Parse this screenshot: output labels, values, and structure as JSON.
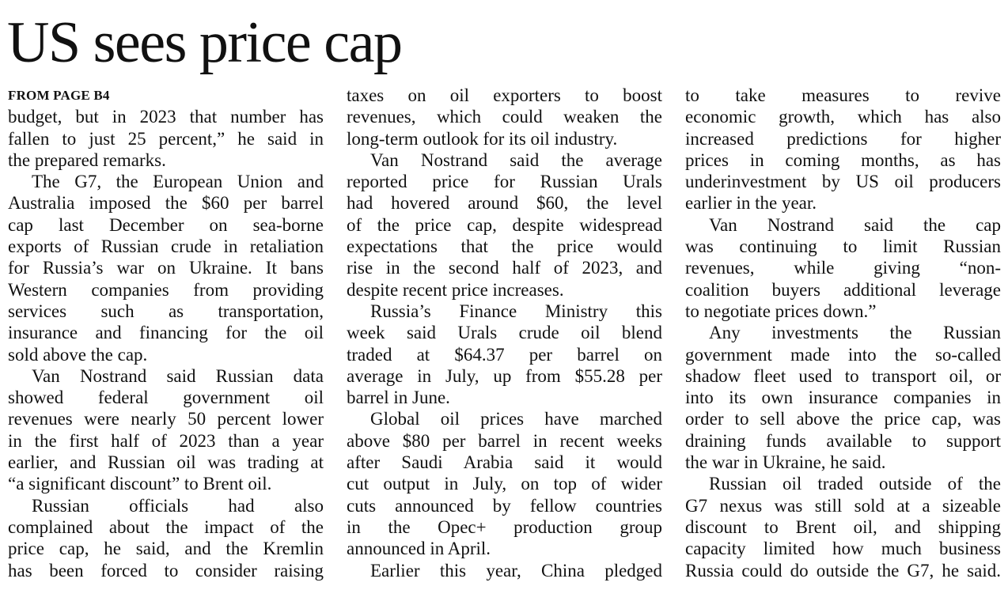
{
  "headline": "US sees price cap",
  "kicker": "FROM PAGE B4",
  "columns": [
    [
      {
        "indent": false,
        "continues": false,
        "lines": [
          "budget, but in 2023 that number has",
          "fallen to just 25 percent,” he said in",
          "the prepared remarks."
        ]
      },
      {
        "indent": true,
        "continues": false,
        "lines": [
          "The G7, the European Union and",
          "Australia imposed the $60 per barrel",
          "cap last December on sea-borne",
          "exports of Russian crude in retaliation",
          "for Russia’s war on Ukraine. It bans",
          "Western companies from providing",
          "services such as transportation,",
          "insurance and financing for the oil",
          "sold above the cap."
        ]
      },
      {
        "indent": true,
        "continues": false,
        "lines": [
          "Van Nostrand said Russian data",
          "showed federal government oil",
          "revenues were nearly 50 percent lower",
          "in the first half of 2023 than a year",
          "earlier, and Russian oil was trading at",
          "“a significant discount” to Brent oil."
        ]
      },
      {
        "indent": true,
        "continues": true,
        "lines": [
          "Russian officials had also",
          "complained about the impact of the",
          "price cap, he said, and the Kremlin",
          "has been forced to consider raising"
        ]
      }
    ],
    [
      {
        "indent": false,
        "continues": false,
        "lines": [
          "taxes on oil exporters to boost",
          "revenues, which could weaken the",
          "long-term outlook for its oil industry."
        ]
      },
      {
        "indent": true,
        "continues": false,
        "lines": [
          "Van Nostrand said the average",
          "reported price for Russian Urals",
          "had hovered around $60, the level",
          "of the price cap, despite widespread",
          "expectations that the price would",
          "rise in the second half of 2023, and",
          "despite recent price increases."
        ]
      },
      {
        "indent": true,
        "continues": false,
        "lines": [
          "Russia’s Finance Ministry this",
          "week said Urals crude oil blend",
          "traded at $64.37 per barrel on",
          "average in July, up from $55.28 per",
          "barrel in June."
        ]
      },
      {
        "indent": true,
        "continues": false,
        "lines": [
          "Global oil prices have marched",
          "above $80 per barrel in recent weeks",
          "after Saudi Arabia said it would",
          "cut output in July, on top of wider",
          "cuts announced by fellow countries",
          "in the Opec+ production group",
          "announced in April."
        ]
      },
      {
        "indent": true,
        "continues": true,
        "lines": [
          "Earlier this year, China pledged"
        ]
      }
    ],
    [
      {
        "indent": false,
        "continues": false,
        "lines": [
          "to take measures to revive",
          "economic growth, which has also",
          "increased predictions for higher",
          "prices in coming months, as has",
          "underinvestment by US oil producers",
          "earlier in the year."
        ]
      },
      {
        "indent": true,
        "continues": false,
        "lines": [
          "Van Nostrand said the cap",
          "was continuing to limit Russian",
          "revenues, while giving “non-",
          "coalition buyers additional leverage",
          "to negotiate prices down.”"
        ]
      },
      {
        "indent": true,
        "continues": false,
        "lines": [
          "Any investments the Russian",
          "government made into the so-called",
          "shadow fleet used to transport oil, or",
          "into its own insurance companies in",
          "order to sell above the price cap, was",
          "draining funds available to support",
          "the war in Ukraine, he said."
        ]
      },
      {
        "indent": true,
        "continues": true,
        "lines": [
          "Russian oil traded outside of the",
          "G7 nexus was still sold at a sizeable",
          "discount to Brent oil, and shipping",
          "capacity limited how much business",
          "Russia could do outside the G7, he said."
        ]
      }
    ]
  ]
}
